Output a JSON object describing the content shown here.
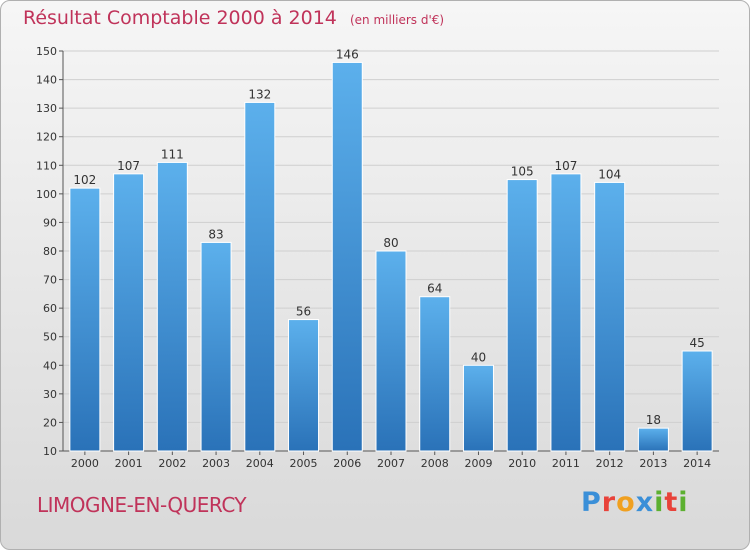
{
  "header": {
    "title": "Résultat Comptable 2000 à 2014",
    "subtitle": "(en milliers d'€)"
  },
  "footer": {
    "commune": "LIMOGNE-EN-QUERCY",
    "logo": "Proxiti",
    "logo_colors": [
      "#3a8fd8",
      "#e8423a",
      "#f0a020",
      "#3a8fd8",
      "#5cb030",
      "#e8423a",
      "#5cb030"
    ]
  },
  "chart_data": {
    "type": "bar",
    "title": "Résultat Comptable 2000 à 2014",
    "subtitle": "(en milliers d'€)",
    "xlabel": "",
    "ylabel": "",
    "categories": [
      "2000",
      "2001",
      "2002",
      "2003",
      "2004",
      "2005",
      "2006",
      "2007",
      "2008",
      "2009",
      "2010",
      "2011",
      "2012",
      "2013",
      "2014"
    ],
    "values": [
      102,
      107,
      111,
      83,
      132,
      56,
      146,
      80,
      64,
      40,
      105,
      107,
      104,
      18,
      45
    ],
    "ylim": [
      10,
      150
    ],
    "yticks": [
      10,
      20,
      30,
      40,
      50,
      60,
      70,
      80,
      90,
      100,
      110,
      120,
      130,
      140,
      150
    ],
    "grid": true,
    "bar_color": "#4a9fe0",
    "bar_color_dark": "#2a6fb0",
    "text_color": "#c0335a"
  }
}
